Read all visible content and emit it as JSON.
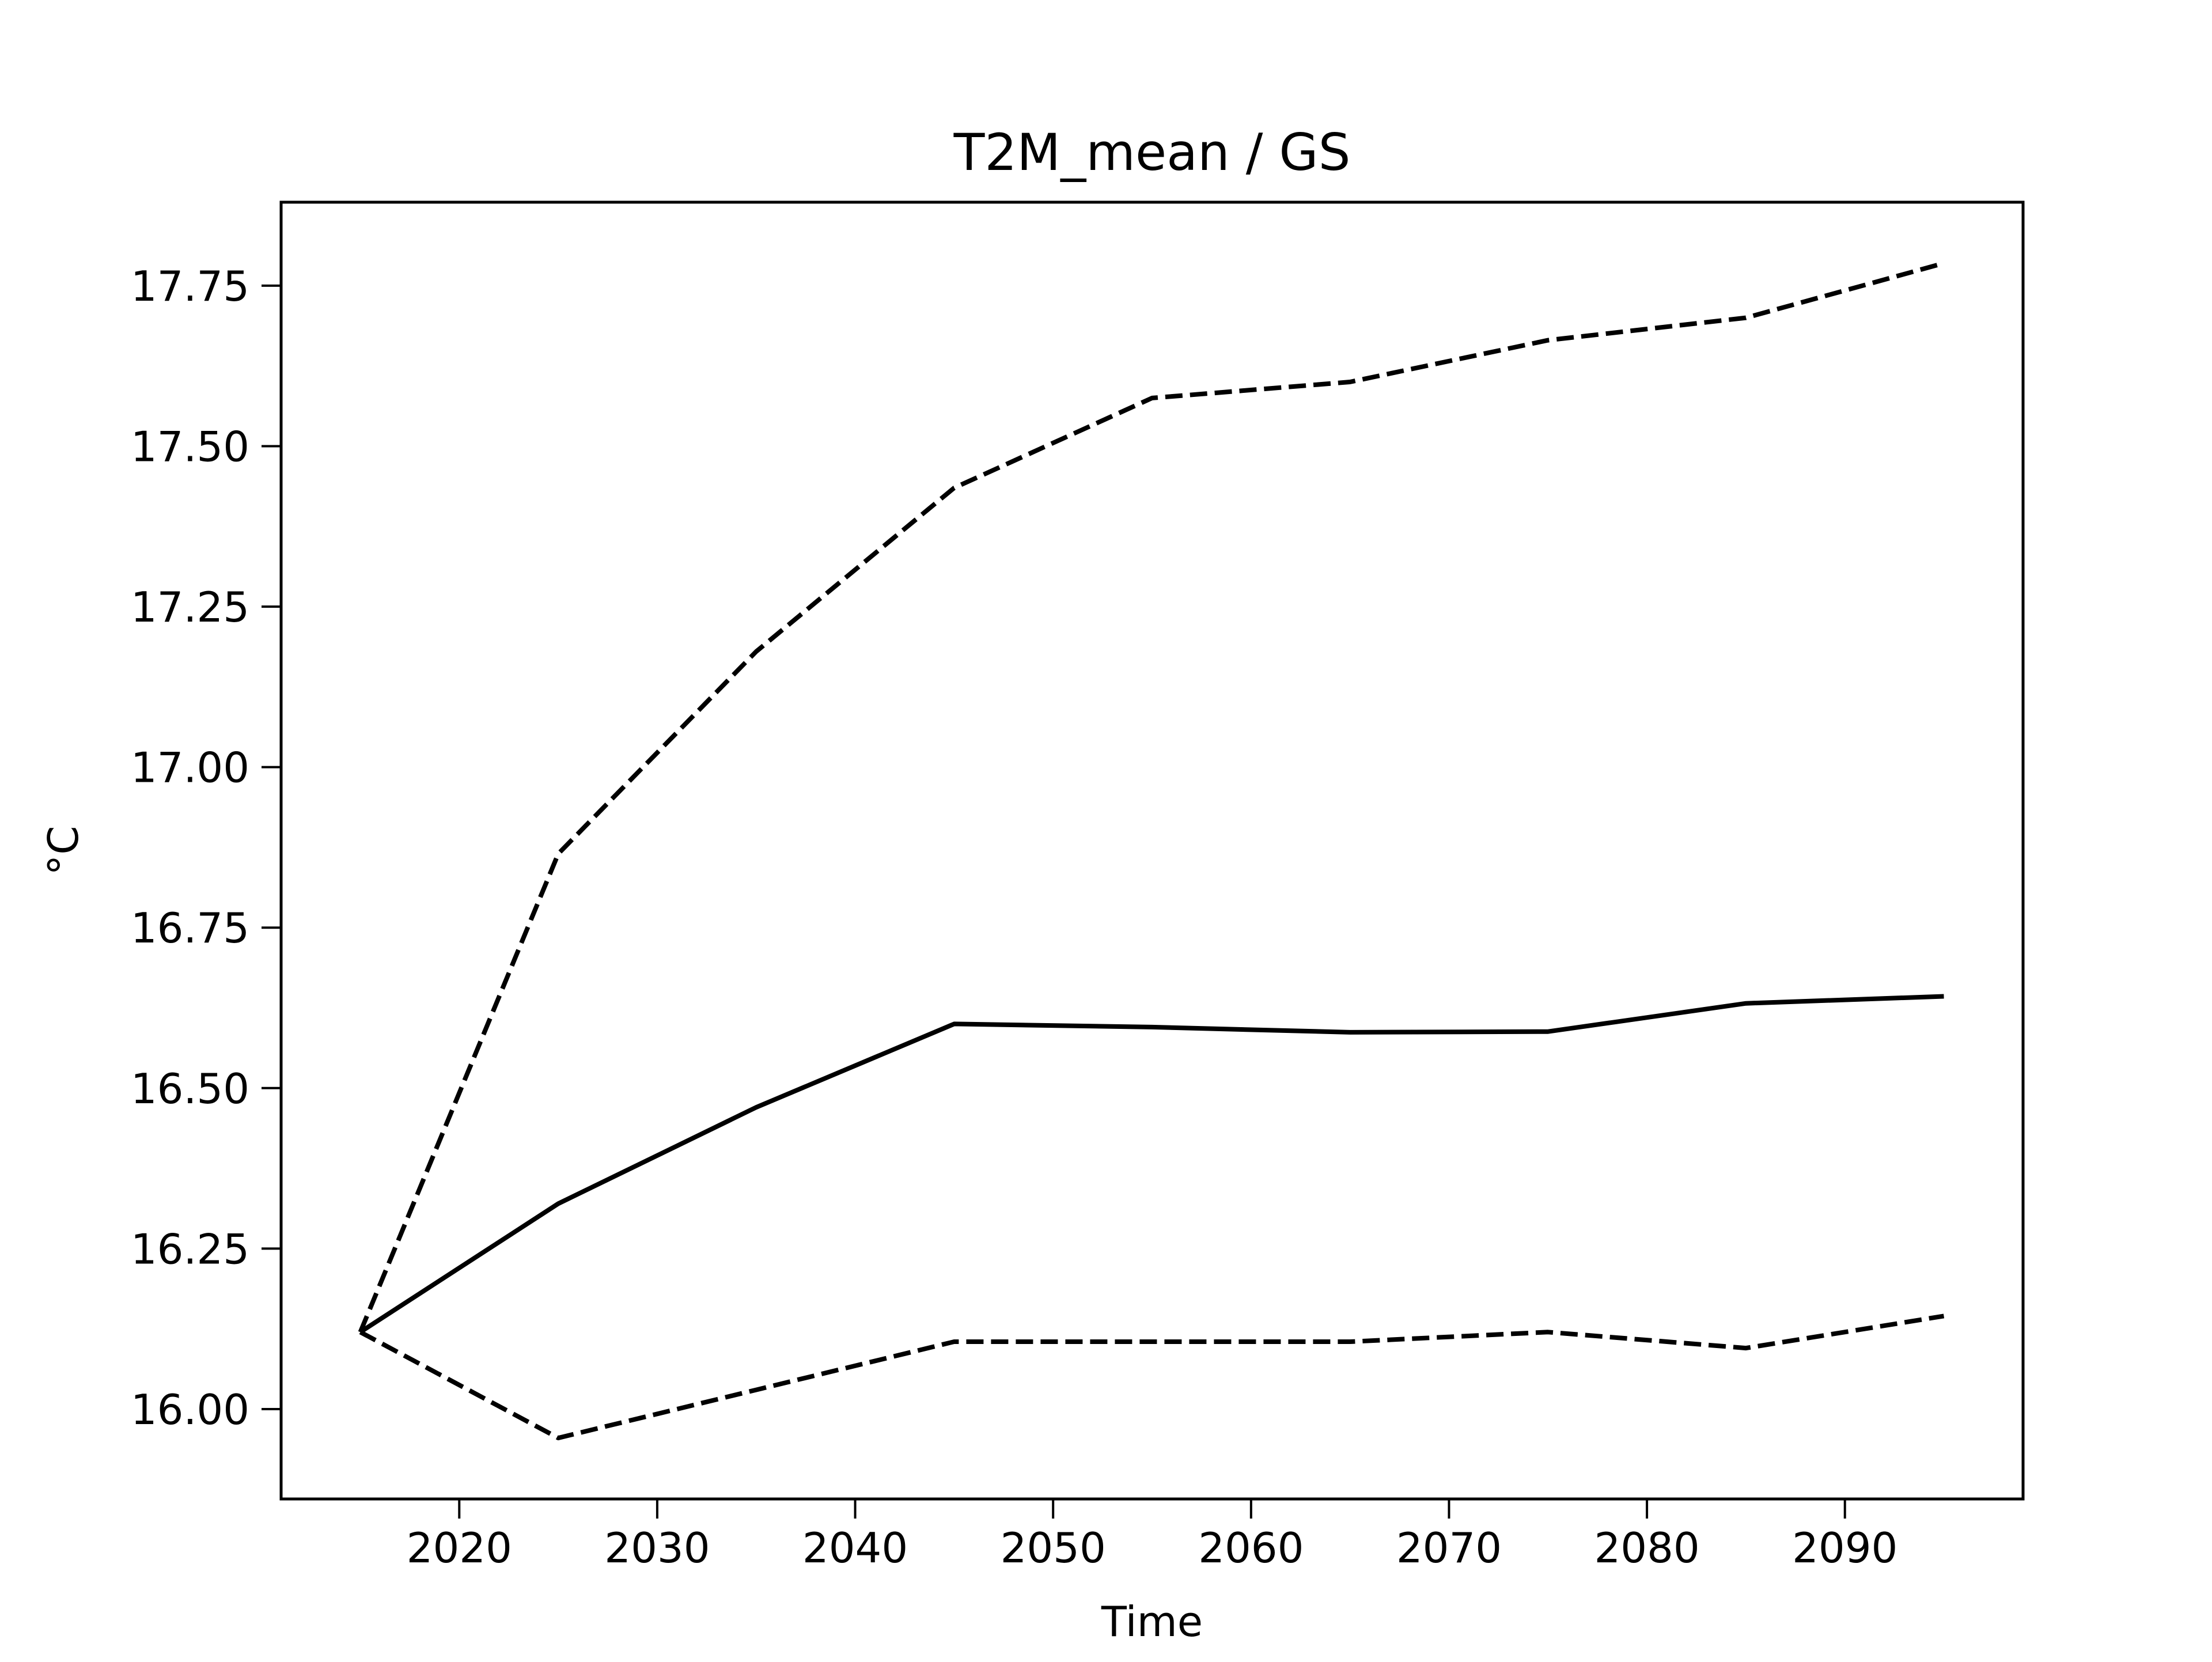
{
  "chart_data": {
    "type": "line",
    "title": "T2M_mean / GS",
    "xlabel": "Time",
    "ylabel": "°C",
    "xlim": [
      2011,
      2099
    ],
    "ylim": [
      15.86,
      17.88
    ],
    "xticks": [
      2020,
      2030,
      2040,
      2050,
      2060,
      2070,
      2080,
      2090
    ],
    "yticks": [
      16.0,
      16.25,
      16.5,
      16.75,
      17.0,
      17.25,
      17.5,
      17.75
    ],
    "ytick_labels": [
      "16.00",
      "16.25",
      "16.50",
      "16.75",
      "17.00",
      "17.25",
      "17.50",
      "17.75"
    ],
    "grid": false,
    "legend": false,
    "series": [
      {
        "style": "solid",
        "color": "#000000",
        "x": [
          2015,
          2025,
          2035,
          2045,
          2055,
          2065,
          2075,
          2085,
          2095
        ],
        "y": [
          16.12,
          16.32,
          16.47,
          16.6,
          16.595,
          16.587,
          16.588,
          16.632,
          16.643
        ]
      },
      {
        "style": "dashed",
        "color": "#000000",
        "x": [
          2015,
          2025,
          2035,
          2045,
          2055,
          2065,
          2075,
          2085,
          2095
        ],
        "y": [
          16.12,
          16.865,
          17.18,
          17.435,
          17.575,
          17.6,
          17.665,
          17.7,
          17.785
        ]
      },
      {
        "style": "dashed",
        "color": "#000000",
        "x": [
          2015,
          2025,
          2035,
          2045,
          2055,
          2065,
          2075,
          2085,
          2095
        ],
        "y": [
          16.12,
          15.955,
          16.03,
          16.105,
          16.105,
          16.105,
          16.12,
          16.095,
          16.145
        ]
      }
    ]
  }
}
